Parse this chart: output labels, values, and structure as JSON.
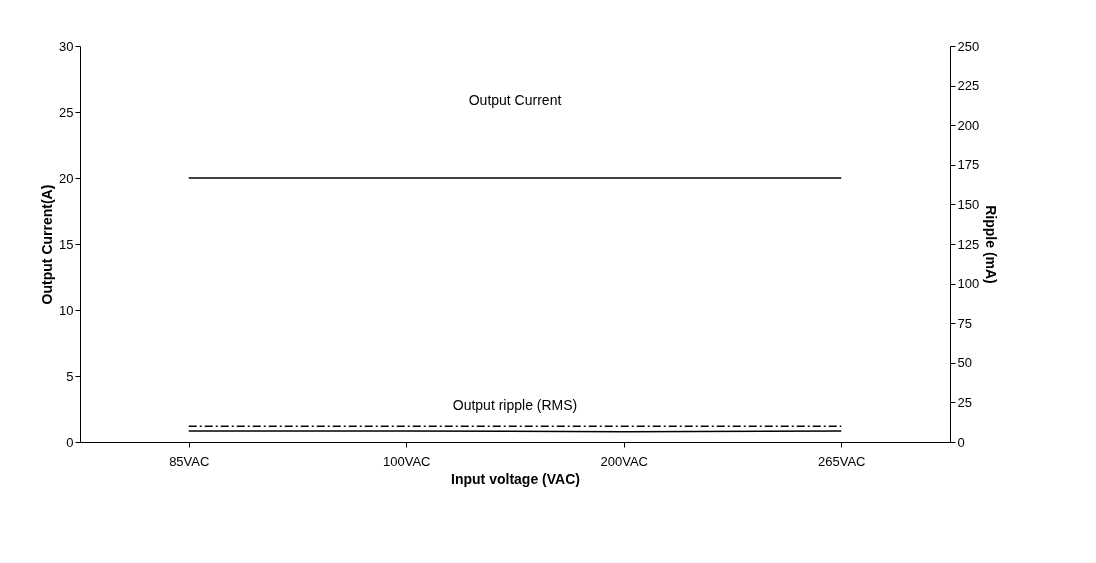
{
  "chart_data": {
    "type": "line",
    "xlabel": "Input voltage (VAC)",
    "ylabel": "Output Current(A)",
    "y2label": "Ripple (mA)",
    "categories": [
      "85VAC",
      "100VAC",
      "200VAC",
      "265VAC"
    ],
    "series": [
      {
        "color": "#000000",
        "values": [
          20,
          20,
          20,
          20
        ],
        "line_style": "solid"
      },
      {
        "color": "#000000",
        "values": [
          10,
          10,
          10,
          10
        ],
        "axis": "y2",
        "line_style": "dashed"
      },
      {
        "color": "#000000",
        "values": [
          7,
          7,
          6.5,
          7
        ],
        "axis": "y2",
        "line_style": "solid"
      }
    ],
    "ylim": [
      0,
      30
    ],
    "yticks": [
      0,
      5,
      10,
      15,
      20,
      25,
      30
    ],
    "y2lim": [
      0,
      250
    ],
    "y2ticks": [
      0,
      25,
      50,
      75,
      100,
      125,
      150,
      175,
      200,
      225,
      250
    ],
    "annotations": [
      "Output  Current",
      "Output ripple (RMS)"
    ],
    "grid": false,
    "marker": "none"
  }
}
